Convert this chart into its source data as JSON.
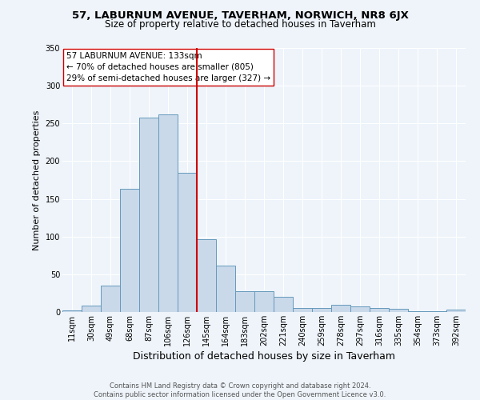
{
  "title": "57, LABURNUM AVENUE, TAVERHAM, NORWICH, NR8 6JX",
  "subtitle": "Size of property relative to detached houses in Taverham",
  "xlabel": "Distribution of detached houses by size in Taverham",
  "ylabel": "Number of detached properties",
  "categories": [
    "11sqm",
    "30sqm",
    "49sqm",
    "68sqm",
    "87sqm",
    "106sqm",
    "126sqm",
    "145sqm",
    "164sqm",
    "183sqm",
    "202sqm",
    "221sqm",
    "240sqm",
    "259sqm",
    "278sqm",
    "297sqm",
    "316sqm",
    "335sqm",
    "354sqm",
    "373sqm",
    "392sqm"
  ],
  "bar_heights": [
    2,
    9,
    35,
    163,
    258,
    262,
    185,
    96,
    62,
    28,
    28,
    20,
    5,
    5,
    10,
    7,
    5,
    4,
    1,
    1,
    3
  ],
  "bar_color": "#c9d9ea",
  "bar_edge_color": "#6699bb",
  "vline_color": "#cc0000",
  "annotation_text": "57 LABURNUM AVENUE: 133sqm\n← 70% of detached houses are smaller (805)\n29% of semi-detached houses are larger (327) →",
  "annotation_box_color": "#ffffff",
  "annotation_box_edge": "#cc0000",
  "ylim": [
    0,
    350
  ],
  "yticks": [
    0,
    50,
    100,
    150,
    200,
    250,
    300,
    350
  ],
  "footer_line1": "Contains HM Land Registry data © Crown copyright and database right 2024.",
  "footer_line2": "Contains public sector information licensed under the Open Government Licence v3.0.",
  "bg_color": "#eef4fa",
  "plot_bg_color": "#eef4fa",
  "title_fontsize": 9.5,
  "subtitle_fontsize": 8.5,
  "xlabel_fontsize": 9,
  "ylabel_fontsize": 8,
  "tick_fontsize": 7,
  "annotation_fontsize": 7.5,
  "footer_fontsize": 6
}
